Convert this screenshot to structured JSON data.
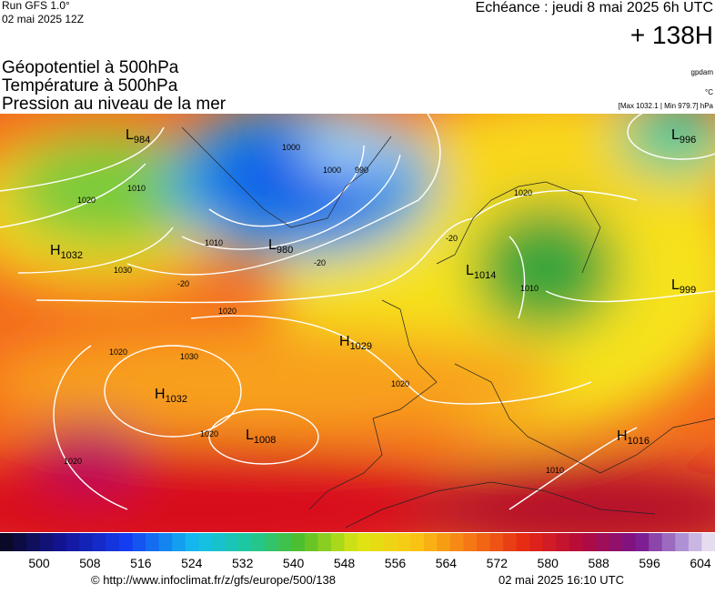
{
  "header": {
    "run": "Run GFS 1.0°",
    "date": "02 mai 2025 12Z",
    "echeance": "Echéance : jeudi 8 mai 2025 6h UTC",
    "lead": "+ 138H"
  },
  "titles": [
    "Géopotentiel à 500hPa",
    "Température à 500hPa",
    "Pression au niveau de la mer"
  ],
  "units": {
    "geo": "gpdam",
    "temp": "°C",
    "pressure": "[Max 1032.1 | Min 979.7] hPa"
  },
  "centers": [
    {
      "type": "L",
      "value": "984"
    },
    {
      "type": "H",
      "value": "1032"
    },
    {
      "type": "L",
      "value": "980"
    },
    {
      "type": "H",
      "value": "1029"
    },
    {
      "type": "H",
      "value": "1032"
    },
    {
      "type": "L",
      "value": "1008"
    },
    {
      "type": "L",
      "value": "1014"
    },
    {
      "type": "L",
      "value": "996"
    },
    {
      "type": "L",
      "value": "999"
    },
    {
      "type": "H",
      "value": "1016"
    }
  ],
  "contour_labels": [
    "1020",
    "1010",
    "1030",
    "1020",
    "1020",
    "1030",
    "1020",
    "1020",
    "1000",
    "1000",
    "990",
    "1010",
    "1020",
    "1010",
    "1020",
    "1010",
    "-20",
    "-20",
    "-20"
  ],
  "colorbar": [
    500,
    508,
    516,
    524,
    532,
    540,
    548,
    556,
    564,
    572,
    580,
    588,
    596,
    604
  ],
  "footer": {
    "url": "© http://www.infoclimat.fr/z/gfs/europe/500/138",
    "stamp": "02 mai 2025 16:10 UTC"
  }
}
